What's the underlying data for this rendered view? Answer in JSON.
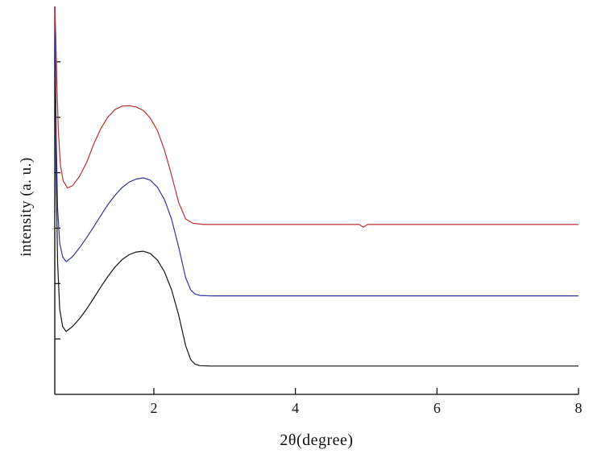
{
  "figure": {
    "background": "#ffffff",
    "xlabel": "2θ(degree)",
    "ylabel": "intensity (a. u.)"
  },
  "chart_data": {
    "type": "line",
    "title": "",
    "xlabel": "2θ(degree)",
    "ylabel": "intensity (a. u.)",
    "xlim": [
      0.6,
      8
    ],
    "ylim": [
      0,
      100
    ],
    "x_ticks": [
      2,
      4,
      6,
      8
    ],
    "x_tick_labels": [
      "2",
      "4",
      "6",
      "8"
    ],
    "y_tick_count": 7,
    "y_ticks_labeled": false,
    "grid": false,
    "legend": null,
    "axes_style": "left-and-bottom-only",
    "axis_color": "#000000",
    "description": "Three stacked small-angle XRD intensity curves, each with a sharp rise at the lowest angle, a broad peak near 2θ ≈ 1.5–2, then a flat baseline out to 8 degrees",
    "annotations": [
      "small notch in the red (top) curve near 2θ ≈ 5"
    ],
    "series": [
      {
        "name": "bottom-black",
        "color": "#141414",
        "points": [
          [
            0.6,
            100
          ],
          [
            0.61,
            78
          ],
          [
            0.62,
            55
          ],
          [
            0.64,
            34
          ],
          [
            0.67,
            22
          ],
          [
            0.71,
            17.5
          ],
          [
            0.76,
            16.2
          ],
          [
            0.85,
            17.5
          ],
          [
            0.95,
            19.5
          ],
          [
            1.05,
            22
          ],
          [
            1.15,
            24.8
          ],
          [
            1.25,
            27.7
          ],
          [
            1.35,
            30.4
          ],
          [
            1.45,
            32.8
          ],
          [
            1.55,
            34.7
          ],
          [
            1.65,
            36.0
          ],
          [
            1.75,
            36.7
          ],
          [
            1.85,
            36.9
          ],
          [
            1.95,
            36.3
          ],
          [
            2.05,
            34.6
          ],
          [
            2.15,
            31.6
          ],
          [
            2.25,
            27.0
          ],
          [
            2.35,
            20.5
          ],
          [
            2.45,
            12.5
          ],
          [
            2.52,
            9.0
          ],
          [
            2.58,
            7.8
          ],
          [
            2.65,
            7.4
          ],
          [
            2.8,
            7.3
          ],
          [
            8.0,
            7.3
          ]
        ]
      },
      {
        "name": "middle-blue",
        "color": "#33339e",
        "points": [
          [
            0.6,
            100
          ],
          [
            0.61,
            85
          ],
          [
            0.62,
            66
          ],
          [
            0.64,
            48
          ],
          [
            0.67,
            39
          ],
          [
            0.71,
            35.5
          ],
          [
            0.76,
            34.2
          ],
          [
            0.85,
            35.5
          ],
          [
            0.95,
            37.8
          ],
          [
            1.05,
            40.4
          ],
          [
            1.15,
            43.2
          ],
          [
            1.25,
            46.1
          ],
          [
            1.35,
            48.9
          ],
          [
            1.45,
            51.3
          ],
          [
            1.55,
            53.3
          ],
          [
            1.65,
            54.7
          ],
          [
            1.75,
            55.5
          ],
          [
            1.85,
            55.8
          ],
          [
            1.95,
            55.2
          ],
          [
            2.05,
            53.4
          ],
          [
            2.15,
            50.2
          ],
          [
            2.25,
            45.2
          ],
          [
            2.35,
            38.0
          ],
          [
            2.45,
            30.0
          ],
          [
            2.52,
            27.0
          ],
          [
            2.58,
            25.9
          ],
          [
            2.65,
            25.5
          ],
          [
            2.8,
            25.4
          ],
          [
            8.0,
            25.4
          ]
        ]
      },
      {
        "name": "top-red",
        "color": "#bf3030",
        "points": [
          [
            0.6,
            100
          ],
          [
            0.615,
            92
          ],
          [
            0.63,
            80
          ],
          [
            0.65,
            68
          ],
          [
            0.68,
            59
          ],
          [
            0.72,
            55
          ],
          [
            0.78,
            53.2
          ],
          [
            0.85,
            53.8
          ],
          [
            0.95,
            56.2
          ],
          [
            1.05,
            59.8
          ],
          [
            1.15,
            64.5
          ],
          [
            1.25,
            68.5
          ],
          [
            1.35,
            71.5
          ],
          [
            1.45,
            73.4
          ],
          [
            1.55,
            74.3
          ],
          [
            1.65,
            74.4
          ],
          [
            1.75,
            74.1
          ],
          [
            1.85,
            73.2
          ],
          [
            1.95,
            71.2
          ],
          [
            2.05,
            68.0
          ],
          [
            2.15,
            63.0
          ],
          [
            2.25,
            56.5
          ],
          [
            2.35,
            49.5
          ],
          [
            2.45,
            45.2
          ],
          [
            2.55,
            44.1
          ],
          [
            2.7,
            43.8
          ],
          [
            4.9,
            43.8
          ],
          [
            4.96,
            43.1
          ],
          [
            5.02,
            43.8
          ],
          [
            8.0,
            43.8
          ]
        ]
      }
    ]
  }
}
